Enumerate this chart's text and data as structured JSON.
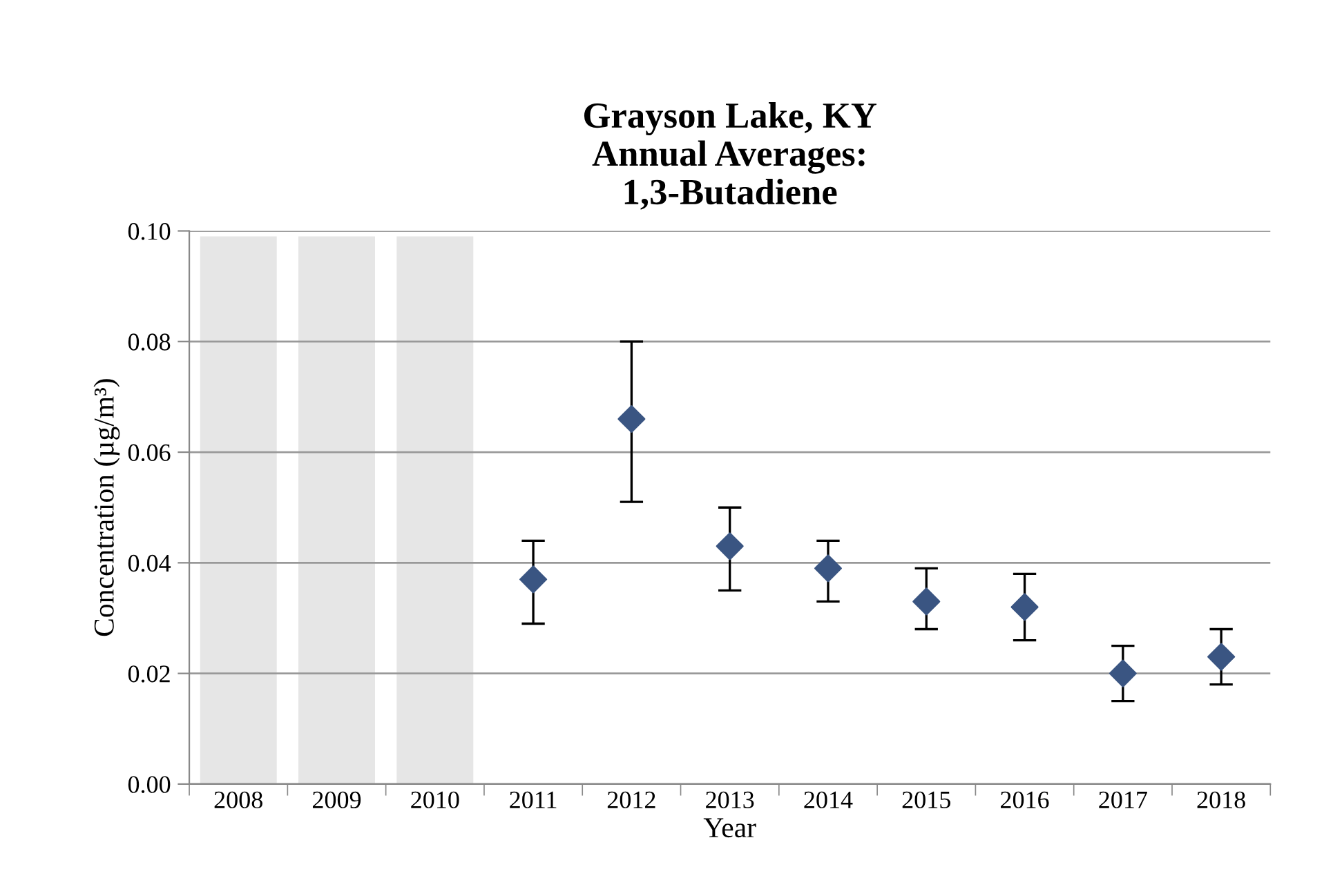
{
  "chart_data": {
    "type": "scatter",
    "title": "Grayson Lake, KY\nAnnual Averages:\n1,3-Butadiene",
    "xlabel": "Year",
    "ylabel": "Concentration (µg/m³)",
    "categories": [
      "2008",
      "2009",
      "2010",
      "2011",
      "2012",
      "2013",
      "2014",
      "2015",
      "2016",
      "2017",
      "2018"
    ],
    "series": [
      {
        "color": "#3a5582",
        "values": [
          null,
          null,
          null,
          0.037,
          0.066,
          0.043,
          0.039,
          0.033,
          0.032,
          0.02,
          0.023
        ],
        "errors": [
          null,
          null,
          null,
          [
            0.029,
            0.044
          ],
          [
            0.051,
            0.08
          ],
          [
            0.035,
            0.05
          ],
          [
            0.033,
            0.044
          ],
          [
            0.028,
            0.039
          ],
          [
            0.026,
            0.038
          ],
          [
            0.015,
            0.025
          ],
          [
            0.018,
            0.028
          ]
        ]
      }
    ],
    "bands": [
      {
        "axis": "x",
        "from": "2008",
        "to": "2008",
        "color": "#e6e6e6"
      },
      {
        "axis": "x",
        "from": "2009",
        "to": "2009",
        "color": "#e6e6e6"
      },
      {
        "axis": "x",
        "from": "2010",
        "to": "2010",
        "color": "#e6e6e6"
      }
    ],
    "ylim": [
      0,
      0.1
    ],
    "yticks": [
      {
        "value": 0,
        "label": "0.00"
      },
      {
        "value": 0.02,
        "label": "0.02"
      },
      {
        "value": 0.04,
        "label": "0.04"
      },
      {
        "value": 0.06,
        "label": "0.06"
      },
      {
        "value": 0.08,
        "label": "0.08"
      },
      {
        "value": 0.1,
        "label": "0.10"
      }
    ],
    "grid": "y",
    "marker": "diamond",
    "legend": false
  }
}
